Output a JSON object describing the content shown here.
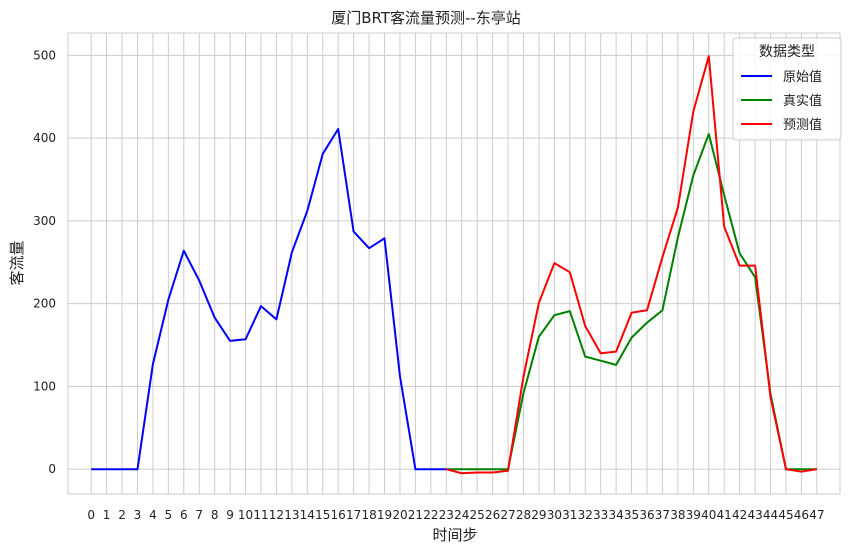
{
  "chart_data": {
    "type": "line",
    "title": "厦门BRT客流量预测--东亭站",
    "xlabel": "时间步",
    "ylabel": "客流量",
    "x": [
      0,
      1,
      2,
      3,
      4,
      5,
      6,
      7,
      8,
      9,
      10,
      11,
      12,
      13,
      14,
      15,
      16,
      17,
      18,
      19,
      20,
      21,
      22,
      23,
      24,
      25,
      26,
      27,
      28,
      29,
      30,
      31,
      32,
      33,
      34,
      35,
      36,
      37,
      38,
      39,
      40,
      41,
      42,
      43,
      44,
      45,
      46,
      47
    ],
    "xticks": [
      "0",
      "1",
      "2",
      "3",
      "4",
      "5",
      "6",
      "7",
      "8",
      "9",
      "10",
      "11",
      "12",
      "13",
      "14",
      "15",
      "16",
      "17",
      "18",
      "19",
      "20",
      "21",
      "22",
      "23",
      "24",
      "25",
      "26",
      "27",
      "28",
      "29",
      "30",
      "31",
      "32",
      "33",
      "34",
      "35",
      "36",
      "37",
      "38",
      "39",
      "40",
      "41",
      "42",
      "43",
      "44",
      "45",
      "46",
      "47"
    ],
    "xlim": [
      -1.5,
      48.5
    ],
    "ylim": [
      -30,
      527
    ],
    "yticks": [
      0,
      100,
      200,
      300,
      400,
      500
    ],
    "grid": true,
    "legend": {
      "title": "数据类型",
      "position": "top-right"
    },
    "series": [
      {
        "name": "原始值",
        "color": "#0000ff",
        "points": [
          [
            0,
            0
          ],
          [
            1,
            0
          ],
          [
            2,
            0
          ],
          [
            3,
            0
          ],
          [
            4,
            127
          ],
          [
            5,
            205
          ],
          [
            6,
            264
          ],
          [
            7,
            228
          ],
          [
            8,
            183
          ],
          [
            9,
            155
          ],
          [
            10,
            157
          ],
          [
            11,
            197
          ],
          [
            12,
            181
          ],
          [
            13,
            262
          ],
          [
            14,
            312
          ],
          [
            15,
            381
          ],
          [
            16,
            411
          ],
          [
            17,
            287
          ],
          [
            18,
            267
          ],
          [
            19,
            279
          ],
          [
            20,
            112
          ],
          [
            21,
            0
          ],
          [
            22,
            0
          ],
          [
            23,
            0
          ]
        ]
      },
      {
        "name": "真实值",
        "color": "#008000",
        "points": [
          [
            23,
            0
          ],
          [
            24,
            0
          ],
          [
            25,
            0
          ],
          [
            26,
            0
          ],
          [
            27,
            0
          ],
          [
            28,
            92
          ],
          [
            29,
            160
          ],
          [
            30,
            186
          ],
          [
            31,
            191
          ],
          [
            32,
            136
          ],
          [
            33,
            131
          ],
          [
            34,
            126
          ],
          [
            35,
            159
          ],
          [
            36,
            177
          ],
          [
            37,
            192
          ],
          [
            38,
            280
          ],
          [
            39,
            355
          ],
          [
            40,
            405
          ],
          [
            41,
            331
          ],
          [
            42,
            261
          ],
          [
            43,
            232
          ],
          [
            44,
            91
          ],
          [
            45,
            0
          ],
          [
            46,
            0
          ],
          [
            47,
            0
          ]
        ]
      },
      {
        "name": "预测值",
        "color": "#ff0000",
        "points": [
          [
            23,
            0
          ],
          [
            24,
            -5
          ],
          [
            25,
            -4
          ],
          [
            26,
            -4
          ],
          [
            27,
            -2
          ],
          [
            28,
            112
          ],
          [
            29,
            201
          ],
          [
            30,
            249
          ],
          [
            31,
            238
          ],
          [
            32,
            173
          ],
          [
            33,
            140
          ],
          [
            34,
            142
          ],
          [
            35,
            189
          ],
          [
            36,
            192
          ],
          [
            37,
            256
          ],
          [
            38,
            316
          ],
          [
            39,
            432
          ],
          [
            40,
            499
          ],
          [
            41,
            293
          ],
          [
            42,
            246
          ],
          [
            43,
            246
          ],
          [
            44,
            87
          ],
          [
            45,
            0
          ],
          [
            46,
            -3
          ],
          [
            47,
            0
          ]
        ]
      }
    ]
  }
}
